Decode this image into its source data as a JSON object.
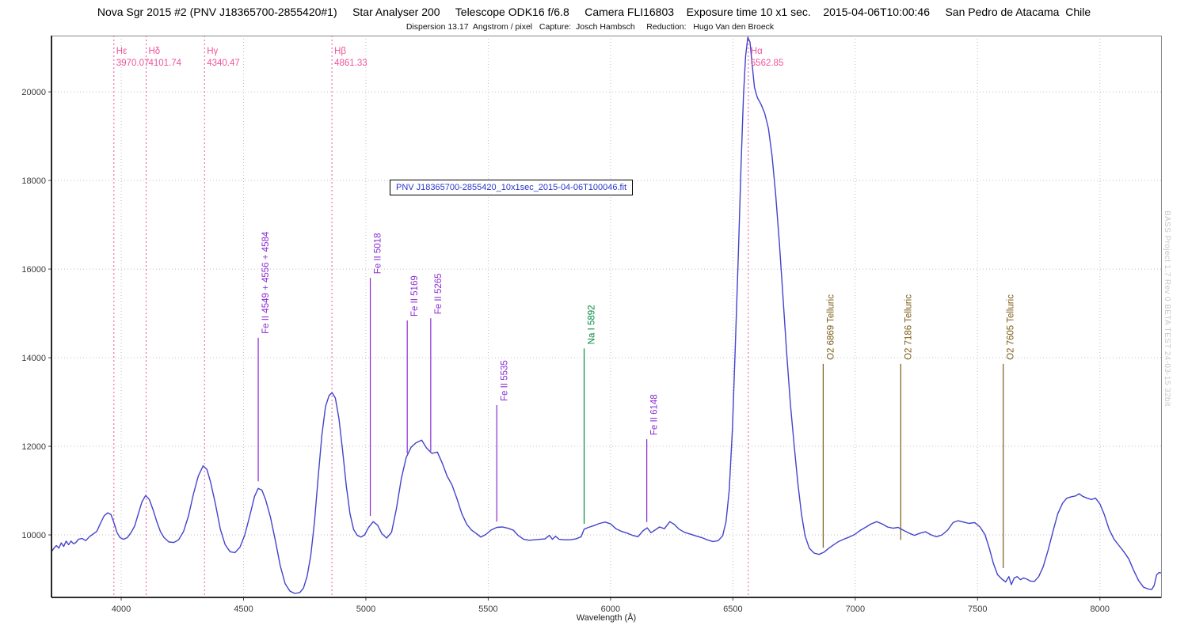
{
  "header": {
    "title": "Nova Sgr 2015 #2 (PNV J18365700-2855420#1)     Star Analyser 200     Telescope ODK16 f/6.8     Camera FLI16803    Exposure time 10 x1 sec.    2015-04-06T10:00:46     San Pedro de Atacama  Chile",
    "subtitle": "Dispersion 13.17  Angstrom / pixel   Capture:  Josch Hambsch     Reduction:   Hugo Van den Broeck"
  },
  "file_label": "PNV J18365700-2855420_10x1sec_2015-04-06T100046.fit",
  "watermark": "BASS Project 1.7 Rev 0 BETA TEST 24-03-15 32bit",
  "colors": {
    "curve": "#4343cd",
    "balmer": "#ef539b",
    "iron": "#8a2bd2",
    "sodium": "#048a42",
    "telluric": "#7b5a14",
    "grid": "#c0c0c0",
    "axis_text": "#3a3a3a",
    "spine": "#000000",
    "frame": "#888888",
    "file_text": "#2b35c8",
    "watermark_text": "#c7c7c7"
  },
  "chart_data": {
    "type": "line",
    "title": "Nova Sgr 2015 #2 (PNV J18365700-2855420#1)",
    "xlabel": "Wavelength (Å)",
    "ylabel": "",
    "xlim": [
      3715,
      8250
    ],
    "ylim": [
      8590,
      21270
    ],
    "x_ticks": [
      4000,
      4500,
      5000,
      5500,
      6000,
      6500,
      7000,
      7500,
      8000
    ],
    "y_ticks": [
      10000,
      12000,
      14000,
      16000,
      18000,
      20000
    ],
    "grid": true,
    "balmer_lines": [
      {
        "name": "Hε",
        "value": "3970.07",
        "wavelength": 3970.07
      },
      {
        "name": "Hδ",
        "value": "4101.74",
        "wavelength": 4101.74
      },
      {
        "name": "Hγ",
        "value": "4340.47",
        "wavelength": 4340.47
      },
      {
        "name": "Hβ",
        "value": "4861.33",
        "wavelength": 4861.33
      },
      {
        "name": "Hα",
        "value": "6562.85",
        "wavelength": 6562.85
      }
    ],
    "element_lines": [
      {
        "label": "Fe II 4549 + 4556 + 4584",
        "wavelength": 4560,
        "color_key": "iron",
        "top": 14450,
        "bottom": 11210
      },
      {
        "label": "Fe II 5018",
        "wavelength": 5018,
        "color_key": "iron",
        "top": 15800,
        "bottom": 10430
      },
      {
        "label": "Fe II 5169",
        "wavelength": 5169,
        "color_key": "iron",
        "top": 14840,
        "bottom": 11840
      },
      {
        "label": "Fe II 5265",
        "wavelength": 5265,
        "color_key": "iron",
        "top": 14890,
        "bottom": 11890
      },
      {
        "label": "Fe II 5535",
        "wavelength": 5535,
        "color_key": "iron",
        "top": 12930,
        "bottom": 10300
      },
      {
        "label": "Na I  5892",
        "wavelength": 5892,
        "color_key": "sodium",
        "top": 14210,
        "bottom": 10250
      },
      {
        "label": "Fe II 6148",
        "wavelength": 6148,
        "color_key": "iron",
        "top": 12160,
        "bottom": 10290
      },
      {
        "label": "O2  6869  Telluric",
        "wavelength": 6869,
        "color_key": "telluric",
        "top": 13860,
        "bottom": 9710
      },
      {
        "label": "O2  7186  Telluric",
        "wavelength": 7186,
        "color_key": "telluric",
        "top": 13860,
        "bottom": 9890
      },
      {
        "label": "O2  7605  Telluric",
        "wavelength": 7605,
        "color_key": "telluric",
        "top": 13860,
        "bottom": 9250
      }
    ],
    "series": [
      {
        "name": "spectrum",
        "points": [
          [
            3715,
            9620
          ],
          [
            3725,
            9700
          ],
          [
            3735,
            9760
          ],
          [
            3745,
            9700
          ],
          [
            3755,
            9820
          ],
          [
            3765,
            9740
          ],
          [
            3775,
            9860
          ],
          [
            3785,
            9780
          ],
          [
            3795,
            9860
          ],
          [
            3805,
            9800
          ],
          [
            3815,
            9830
          ],
          [
            3825,
            9900
          ],
          [
            3840,
            9920
          ],
          [
            3855,
            9870
          ],
          [
            3870,
            9960
          ],
          [
            3885,
            10020
          ],
          [
            3900,
            10080
          ],
          [
            3915,
            10260
          ],
          [
            3930,
            10430
          ],
          [
            3945,
            10500
          ],
          [
            3958,
            10460
          ],
          [
            3970,
            10280
          ],
          [
            3983,
            10050
          ],
          [
            3995,
            9940
          ],
          [
            4010,
            9900
          ],
          [
            4025,
            9940
          ],
          [
            4040,
            10050
          ],
          [
            4055,
            10200
          ],
          [
            4070,
            10480
          ],
          [
            4085,
            10750
          ],
          [
            4100,
            10890
          ],
          [
            4115,
            10800
          ],
          [
            4130,
            10570
          ],
          [
            4145,
            10310
          ],
          [
            4160,
            10080
          ],
          [
            4175,
            9940
          ],
          [
            4195,
            9840
          ],
          [
            4215,
            9830
          ],
          [
            4235,
            9890
          ],
          [
            4255,
            10080
          ],
          [
            4275,
            10430
          ],
          [
            4295,
            10920
          ],
          [
            4315,
            11330
          ],
          [
            4335,
            11560
          ],
          [
            4350,
            11480
          ],
          [
            4365,
            11200
          ],
          [
            4385,
            10700
          ],
          [
            4405,
            10130
          ],
          [
            4425,
            9780
          ],
          [
            4445,
            9620
          ],
          [
            4465,
            9600
          ],
          [
            4485,
            9720
          ],
          [
            4505,
            10000
          ],
          [
            4525,
            10420
          ],
          [
            4545,
            10870
          ],
          [
            4560,
            11050
          ],
          [
            4575,
            11010
          ],
          [
            4590,
            10800
          ],
          [
            4610,
            10400
          ],
          [
            4630,
            9870
          ],
          [
            4650,
            9300
          ],
          [
            4670,
            8900
          ],
          [
            4690,
            8730
          ],
          [
            4710,
            8680
          ],
          [
            4730,
            8700
          ],
          [
            4745,
            8800
          ],
          [
            4760,
            9070
          ],
          [
            4775,
            9550
          ],
          [
            4790,
            10300
          ],
          [
            4805,
            11300
          ],
          [
            4820,
            12250
          ],
          [
            4835,
            12900
          ],
          [
            4850,
            13150
          ],
          [
            4862,
            13210
          ],
          [
            4875,
            13090
          ],
          [
            4890,
            12620
          ],
          [
            4905,
            11900
          ],
          [
            4920,
            11100
          ],
          [
            4935,
            10480
          ],
          [
            4950,
            10120
          ],
          [
            4965,
            9990
          ],
          [
            4980,
            9950
          ],
          [
            4995,
            10000
          ],
          [
            5010,
            10160
          ],
          [
            5030,
            10300
          ],
          [
            5048,
            10220
          ],
          [
            5065,
            10030
          ],
          [
            5085,
            9930
          ],
          [
            5105,
            10060
          ],
          [
            5125,
            10600
          ],
          [
            5145,
            11280
          ],
          [
            5165,
            11750
          ],
          [
            5185,
            11980
          ],
          [
            5205,
            12080
          ],
          [
            5228,
            12140
          ],
          [
            5248,
            11960
          ],
          [
            5270,
            11840
          ],
          [
            5292,
            11870
          ],
          [
            5312,
            11620
          ],
          [
            5332,
            11330
          ],
          [
            5352,
            11130
          ],
          [
            5372,
            10820
          ],
          [
            5392,
            10480
          ],
          [
            5412,
            10240
          ],
          [
            5432,
            10110
          ],
          [
            5452,
            10030
          ],
          [
            5470,
            9950
          ],
          [
            5490,
            10010
          ],
          [
            5512,
            10110
          ],
          [
            5535,
            10170
          ],
          [
            5558,
            10180
          ],
          [
            5580,
            10150
          ],
          [
            5602,
            10110
          ],
          [
            5622,
            9990
          ],
          [
            5645,
            9900
          ],
          [
            5668,
            9880
          ],
          [
            5690,
            9890
          ],
          [
            5712,
            9900
          ],
          [
            5732,
            9910
          ],
          [
            5750,
            9990
          ],
          [
            5762,
            9900
          ],
          [
            5775,
            9970
          ],
          [
            5790,
            9900
          ],
          [
            5812,
            9890
          ],
          [
            5835,
            9890
          ],
          [
            5858,
            9910
          ],
          [
            5880,
            9960
          ],
          [
            5892,
            10130
          ],
          [
            5910,
            10170
          ],
          [
            5932,
            10210
          ],
          [
            5955,
            10260
          ],
          [
            5978,
            10290
          ],
          [
            6000,
            10250
          ],
          [
            6022,
            10140
          ],
          [
            6045,
            10080
          ],
          [
            6068,
            10040
          ],
          [
            6090,
            9990
          ],
          [
            6112,
            9960
          ],
          [
            6132,
            10090
          ],
          [
            6150,
            10160
          ],
          [
            6165,
            10050
          ],
          [
            6182,
            10110
          ],
          [
            6200,
            10180
          ],
          [
            6220,
            10140
          ],
          [
            6242,
            10300
          ],
          [
            6260,
            10240
          ],
          [
            6280,
            10130
          ],
          [
            6302,
            10060
          ],
          [
            6325,
            10020
          ],
          [
            6348,
            9980
          ],
          [
            6372,
            9940
          ],
          [
            6395,
            9890
          ],
          [
            6418,
            9850
          ],
          [
            6440,
            9870
          ],
          [
            6458,
            9980
          ],
          [
            6472,
            10300
          ],
          [
            6485,
            11000
          ],
          [
            6498,
            12400
          ],
          [
            6510,
            14300
          ],
          [
            6522,
            16300
          ],
          [
            6533,
            18300
          ],
          [
            6543,
            19900
          ],
          [
            6552,
            20800
          ],
          [
            6561,
            21230
          ],
          [
            6570,
            21120
          ],
          [
            6579,
            20600
          ],
          [
            6588,
            20100
          ],
          [
            6600,
            19870
          ],
          [
            6615,
            19720
          ],
          [
            6630,
            19520
          ],
          [
            6645,
            19180
          ],
          [
            6660,
            18560
          ],
          [
            6675,
            17680
          ],
          [
            6690,
            16580
          ],
          [
            6705,
            15350
          ],
          [
            6720,
            14100
          ],
          [
            6735,
            12950
          ],
          [
            6750,
            12050
          ],
          [
            6765,
            11200
          ],
          [
            6780,
            10480
          ],
          [
            6795,
            9980
          ],
          [
            6812,
            9700
          ],
          [
            6832,
            9590
          ],
          [
            6852,
            9560
          ],
          [
            6872,
            9610
          ],
          [
            6892,
            9700
          ],
          [
            6912,
            9780
          ],
          [
            6932,
            9850
          ],
          [
            6952,
            9900
          ],
          [
            6975,
            9950
          ],
          [
            6998,
            10010
          ],
          [
            7020,
            10100
          ],
          [
            7042,
            10170
          ],
          [
            7065,
            10250
          ],
          [
            7088,
            10300
          ],
          [
            7110,
            10250
          ],
          [
            7132,
            10180
          ],
          [
            7155,
            10150
          ],
          [
            7175,
            10170
          ],
          [
            7198,
            10100
          ],
          [
            7220,
            10040
          ],
          [
            7242,
            9990
          ],
          [
            7265,
            10040
          ],
          [
            7288,
            10070
          ],
          [
            7310,
            10000
          ],
          [
            7332,
            9960
          ],
          [
            7355,
            10000
          ],
          [
            7378,
            10110
          ],
          [
            7400,
            10280
          ],
          [
            7420,
            10320
          ],
          [
            7442,
            10290
          ],
          [
            7465,
            10260
          ],
          [
            7488,
            10280
          ],
          [
            7510,
            10180
          ],
          [
            7530,
            10010
          ],
          [
            7548,
            9700
          ],
          [
            7565,
            9350
          ],
          [
            7582,
            9100
          ],
          [
            7600,
            9000
          ],
          [
            7615,
            8940
          ],
          [
            7628,
            9060
          ],
          [
            7638,
            8880
          ],
          [
            7650,
            9030
          ],
          [
            7662,
            9060
          ],
          [
            7675,
            8990
          ],
          [
            7688,
            9030
          ],
          [
            7702,
            9000
          ],
          [
            7715,
            8960
          ],
          [
            7732,
            8950
          ],
          [
            7750,
            9060
          ],
          [
            7768,
            9280
          ],
          [
            7788,
            9650
          ],
          [
            7808,
            10080
          ],
          [
            7828,
            10480
          ],
          [
            7848,
            10720
          ],
          [
            7865,
            10830
          ],
          [
            7882,
            10860
          ],
          [
            7900,
            10880
          ],
          [
            7915,
            10930
          ],
          [
            7930,
            10870
          ],
          [
            7948,
            10830
          ],
          [
            7965,
            10800
          ],
          [
            7982,
            10830
          ],
          [
            8000,
            10700
          ],
          [
            8018,
            10460
          ],
          [
            8038,
            10120
          ],
          [
            8058,
            9900
          ],
          [
            8078,
            9760
          ],
          [
            8098,
            9620
          ],
          [
            8118,
            9460
          ],
          [
            8138,
            9200
          ],
          [
            8158,
            8970
          ],
          [
            8178,
            8820
          ],
          [
            8198,
            8780
          ],
          [
            8212,
            8770
          ],
          [
            8222,
            8860
          ],
          [
            8232,
            9100
          ],
          [
            8242,
            9150
          ],
          [
            8250,
            9140
          ]
        ]
      }
    ]
  }
}
